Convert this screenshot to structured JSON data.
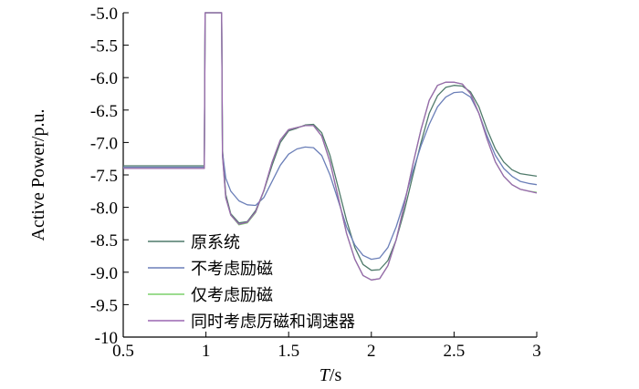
{
  "chart_data": {
    "type": "line",
    "xlabel_italic": "T",
    "xlabel_unit": "/s",
    "ylabel": "Active Power/p.u.",
    "xlim": [
      0.5,
      3
    ],
    "ylim": [
      -10,
      -5
    ],
    "xticks": [
      "0.5",
      "1",
      "1.5",
      "2",
      "2.5",
      "3"
    ],
    "yticks": [
      "-5.0",
      "-5.5",
      "-6.0",
      "-6.5",
      "-7.0",
      "-7.5",
      "-8.0",
      "-8.5",
      "-9.0",
      "-9.5",
      "-10"
    ],
    "legend_position": "bottom-left",
    "series": [
      {
        "name": "原系统",
        "color": "#4f7a6a",
        "points": [
          [
            0.5,
            -7.36
          ],
          [
            0.99,
            -7.36
          ],
          [
            0.995,
            -5.0
          ],
          [
            1.095,
            -5.0
          ],
          [
            1.1,
            -7.1
          ],
          [
            1.12,
            -7.8
          ],
          [
            1.15,
            -8.1
          ],
          [
            1.2,
            -8.24
          ],
          [
            1.25,
            -8.22
          ],
          [
            1.3,
            -8.05
          ],
          [
            1.35,
            -7.75
          ],
          [
            1.4,
            -7.35
          ],
          [
            1.45,
            -7.0
          ],
          [
            1.5,
            -6.82
          ],
          [
            1.55,
            -6.78
          ],
          [
            1.6,
            -6.73
          ],
          [
            1.65,
            -6.72
          ],
          [
            1.7,
            -6.85
          ],
          [
            1.75,
            -7.2
          ],
          [
            1.8,
            -7.7
          ],
          [
            1.85,
            -8.2
          ],
          [
            1.9,
            -8.62
          ],
          [
            1.95,
            -8.88
          ],
          [
            2.0,
            -8.97
          ],
          [
            2.05,
            -8.96
          ],
          [
            2.1,
            -8.82
          ],
          [
            2.15,
            -8.5
          ],
          [
            2.2,
            -8.05
          ],
          [
            2.25,
            -7.52
          ],
          [
            2.3,
            -7.0
          ],
          [
            2.35,
            -6.55
          ],
          [
            2.4,
            -6.28
          ],
          [
            2.45,
            -6.15
          ],
          [
            2.5,
            -6.12
          ],
          [
            2.55,
            -6.13
          ],
          [
            2.6,
            -6.22
          ],
          [
            2.65,
            -6.45
          ],
          [
            2.7,
            -6.8
          ],
          [
            2.75,
            -7.1
          ],
          [
            2.8,
            -7.3
          ],
          [
            2.85,
            -7.42
          ],
          [
            2.9,
            -7.48
          ],
          [
            2.95,
            -7.5
          ],
          [
            3.0,
            -7.52
          ]
        ]
      },
      {
        "name": "不考虑励磁",
        "color": "#6b7fb8",
        "points": [
          [
            0.5,
            -7.38
          ],
          [
            0.99,
            -7.38
          ],
          [
            0.995,
            -5.0
          ],
          [
            1.095,
            -5.0
          ],
          [
            1.1,
            -7.15
          ],
          [
            1.12,
            -7.55
          ],
          [
            1.15,
            -7.75
          ],
          [
            1.2,
            -7.9
          ],
          [
            1.25,
            -7.96
          ],
          [
            1.3,
            -7.97
          ],
          [
            1.35,
            -7.85
          ],
          [
            1.4,
            -7.6
          ],
          [
            1.45,
            -7.35
          ],
          [
            1.5,
            -7.18
          ],
          [
            1.55,
            -7.1
          ],
          [
            1.6,
            -7.07
          ],
          [
            1.65,
            -7.08
          ],
          [
            1.7,
            -7.2
          ],
          [
            1.75,
            -7.5
          ],
          [
            1.8,
            -7.9
          ],
          [
            1.85,
            -8.3
          ],
          [
            1.9,
            -8.58
          ],
          [
            1.95,
            -8.74
          ],
          [
            2.0,
            -8.8
          ],
          [
            2.05,
            -8.78
          ],
          [
            2.1,
            -8.62
          ],
          [
            2.15,
            -8.3
          ],
          [
            2.2,
            -7.9
          ],
          [
            2.25,
            -7.45
          ],
          [
            2.3,
            -7.05
          ],
          [
            2.35,
            -6.72
          ],
          [
            2.4,
            -6.45
          ],
          [
            2.45,
            -6.3
          ],
          [
            2.5,
            -6.23
          ],
          [
            2.55,
            -6.22
          ],
          [
            2.6,
            -6.3
          ],
          [
            2.65,
            -6.55
          ],
          [
            2.7,
            -6.9
          ],
          [
            2.75,
            -7.2
          ],
          [
            2.8,
            -7.4
          ],
          [
            2.85,
            -7.52
          ],
          [
            2.9,
            -7.6
          ],
          [
            2.95,
            -7.63
          ],
          [
            3.0,
            -7.65
          ]
        ]
      },
      {
        "name": "仅考虑励磁",
        "color": "#7cd06a",
        "points": [
          [
            0.5,
            -7.4
          ],
          [
            0.99,
            -7.4
          ],
          [
            0.995,
            -5.0
          ],
          [
            1.095,
            -5.0
          ],
          [
            1.1,
            -7.2
          ],
          [
            1.12,
            -7.85
          ],
          [
            1.15,
            -8.12
          ],
          [
            1.2,
            -8.27
          ],
          [
            1.25,
            -8.24
          ],
          [
            1.3,
            -8.08
          ],
          [
            1.35,
            -7.75
          ],
          [
            1.4,
            -7.3
          ],
          [
            1.45,
            -6.96
          ],
          [
            1.5,
            -6.8
          ],
          [
            1.55,
            -6.77
          ],
          [
            1.6,
            -6.74
          ],
          [
            1.65,
            -6.74
          ],
          [
            1.7,
            -6.9
          ],
          [
            1.75,
            -7.3
          ],
          [
            1.8,
            -7.85
          ],
          [
            1.85,
            -8.4
          ],
          [
            1.9,
            -8.8
          ],
          [
            1.95,
            -9.05
          ],
          [
            2.0,
            -9.12
          ],
          [
            2.05,
            -9.1
          ],
          [
            2.1,
            -8.9
          ],
          [
            2.15,
            -8.5
          ],
          [
            2.2,
            -7.95
          ],
          [
            2.25,
            -7.35
          ],
          [
            2.3,
            -6.8
          ],
          [
            2.35,
            -6.35
          ],
          [
            2.4,
            -6.12
          ],
          [
            2.45,
            -6.07
          ],
          [
            2.5,
            -6.07
          ],
          [
            2.55,
            -6.1
          ],
          [
            2.6,
            -6.25
          ],
          [
            2.65,
            -6.55
          ],
          [
            2.7,
            -6.95
          ],
          [
            2.75,
            -7.3
          ],
          [
            2.8,
            -7.52
          ],
          [
            2.85,
            -7.65
          ],
          [
            2.9,
            -7.72
          ],
          [
            2.95,
            -7.75
          ],
          [
            3.0,
            -7.77
          ]
        ]
      },
      {
        "name": "同时考虑厉磁和调速器",
        "color": "#9a66b0",
        "points": [
          [
            0.5,
            -7.4
          ],
          [
            0.99,
            -7.4
          ],
          [
            0.995,
            -5.0
          ],
          [
            1.095,
            -5.0
          ],
          [
            1.1,
            -7.2
          ],
          [
            1.12,
            -7.85
          ],
          [
            1.15,
            -8.12
          ],
          [
            1.2,
            -8.26
          ],
          [
            1.25,
            -8.23
          ],
          [
            1.3,
            -8.07
          ],
          [
            1.35,
            -7.74
          ],
          [
            1.4,
            -7.3
          ],
          [
            1.45,
            -6.96
          ],
          [
            1.5,
            -6.8
          ],
          [
            1.55,
            -6.77
          ],
          [
            1.6,
            -6.74
          ],
          [
            1.65,
            -6.74
          ],
          [
            1.7,
            -6.9
          ],
          [
            1.75,
            -7.3
          ],
          [
            1.8,
            -7.85
          ],
          [
            1.85,
            -8.4
          ],
          [
            1.9,
            -8.8
          ],
          [
            1.95,
            -9.05
          ],
          [
            2.0,
            -9.12
          ],
          [
            2.05,
            -9.1
          ],
          [
            2.1,
            -8.9
          ],
          [
            2.15,
            -8.5
          ],
          [
            2.2,
            -7.95
          ],
          [
            2.25,
            -7.35
          ],
          [
            2.3,
            -6.8
          ],
          [
            2.35,
            -6.35
          ],
          [
            2.4,
            -6.12
          ],
          [
            2.45,
            -6.07
          ],
          [
            2.5,
            -6.07
          ],
          [
            2.55,
            -6.1
          ],
          [
            2.6,
            -6.25
          ],
          [
            2.65,
            -6.55
          ],
          [
            2.7,
            -6.95
          ],
          [
            2.75,
            -7.3
          ],
          [
            2.8,
            -7.52
          ],
          [
            2.85,
            -7.65
          ],
          [
            2.9,
            -7.72
          ],
          [
            2.95,
            -7.75
          ],
          [
            3.0,
            -7.78
          ]
        ]
      }
    ]
  }
}
